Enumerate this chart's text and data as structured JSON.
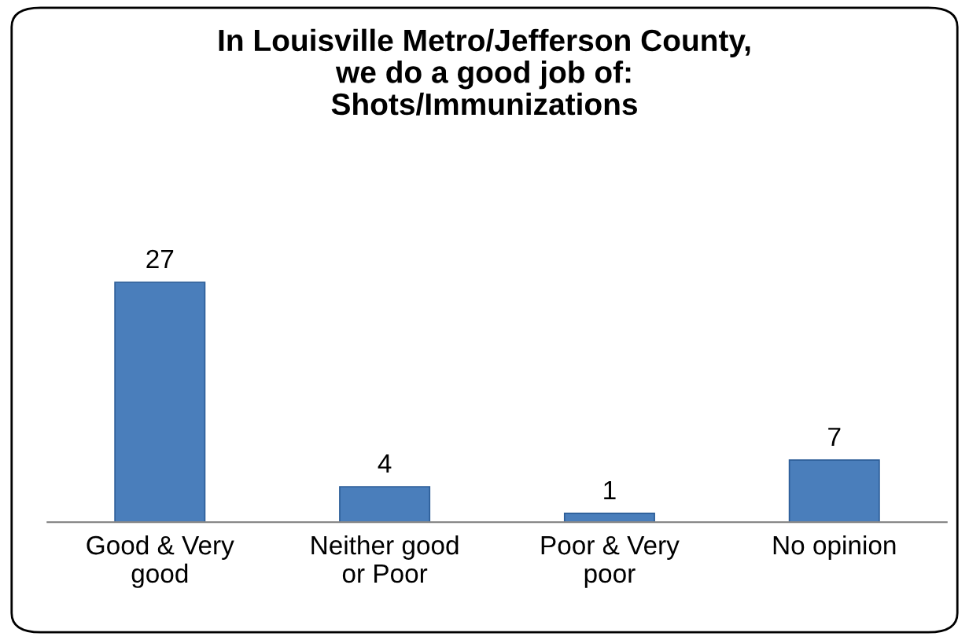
{
  "chart_data": {
    "type": "bar",
    "title": "In Louisville Metro/Jefferson County,\nwe do a good job of:\nShots/Immunizations",
    "categories": [
      "Good & Very\ngood",
      "Neither good\nor Poor",
      "Poor & Very\npoor",
      "No opinion"
    ],
    "values": [
      27,
      4,
      1,
      7
    ],
    "color": "#4a7ebb",
    "data_labels": true,
    "grid": false,
    "legend": false
  }
}
